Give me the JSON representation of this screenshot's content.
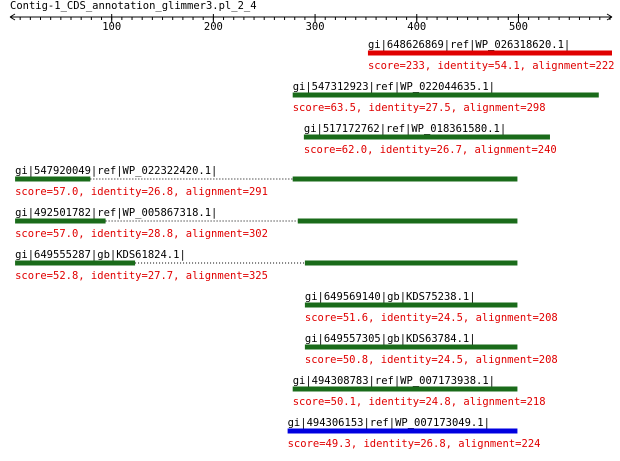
{
  "title": "Contig-1_CDS_annotation_glimmer3.pl_2_4",
  "axis": {
    "xlim": [
      0,
      592
    ],
    "xticks": [
      100,
      200,
      300,
      400,
      500
    ]
  },
  "hits": [
    {
      "label": "gi|648626869|ref|WP_026318620.1|",
      "score": "score=233, identity=54.1, alignment=222",
      "color": "#e00000",
      "segments": [
        [
          352,
          592
        ]
      ]
    },
    {
      "label": "gi|547312923|ref|WP_022044635.1|",
      "score": "score=63.5, identity=27.5, alignment=298",
      "color": "#1a6b1a",
      "segments": [
        [
          278,
          579
        ]
      ]
    },
    {
      "label": "gi|517172762|ref|WP_018361580.1|",
      "score": "score=62.0, identity=26.7, alignment=240",
      "color": "#1a6b1a",
      "segments": [
        [
          289,
          531
        ]
      ]
    },
    {
      "label": "gi|547920049|ref|WP_022322420.1|",
      "score": "score=57.0, identity=26.8, alignment=291",
      "color": "#1a6b1a",
      "segments": [
        [
          5,
          79
        ],
        [
          278,
          499
        ]
      ]
    },
    {
      "label": "gi|492501782|ref|WP_005867318.1|",
      "score": "score=57.0, identity=28.8, alignment=302",
      "color": "#1a6b1a",
      "segments": [
        [
          5,
          94
        ],
        [
          283,
          499
        ]
      ]
    },
    {
      "label": "gi|649555287|gb|KDS61824.1|",
      "score": "score=52.8, identity=27.7, alignment=325",
      "color": "#1a6b1a",
      "segments": [
        [
          5,
          123
        ],
        [
          290,
          499
        ]
      ]
    },
    {
      "label": "gi|649569140|gb|KDS75238.1|",
      "score": "score=51.6, identity=24.5, alignment=208",
      "color": "#1a6b1a",
      "segments": [
        [
          290,
          499
        ]
      ]
    },
    {
      "label": "gi|649557305|gb|KDS63784.1|",
      "score": "score=50.8, identity=24.5, alignment=208",
      "color": "#1a6b1a",
      "segments": [
        [
          290,
          499
        ]
      ]
    },
    {
      "label": "gi|494308783|ref|WP_007173938.1|",
      "score": "score=50.1, identity=24.8, alignment=218",
      "color": "#1a6b1a",
      "segments": [
        [
          278,
          499
        ]
      ]
    },
    {
      "label": "gi|494306153|ref|WP_007173049.1|",
      "score": "score=49.3, identity=26.8, alignment=224",
      "color": "#0000e0",
      "segments": [
        [
          273,
          499
        ]
      ]
    }
  ]
}
